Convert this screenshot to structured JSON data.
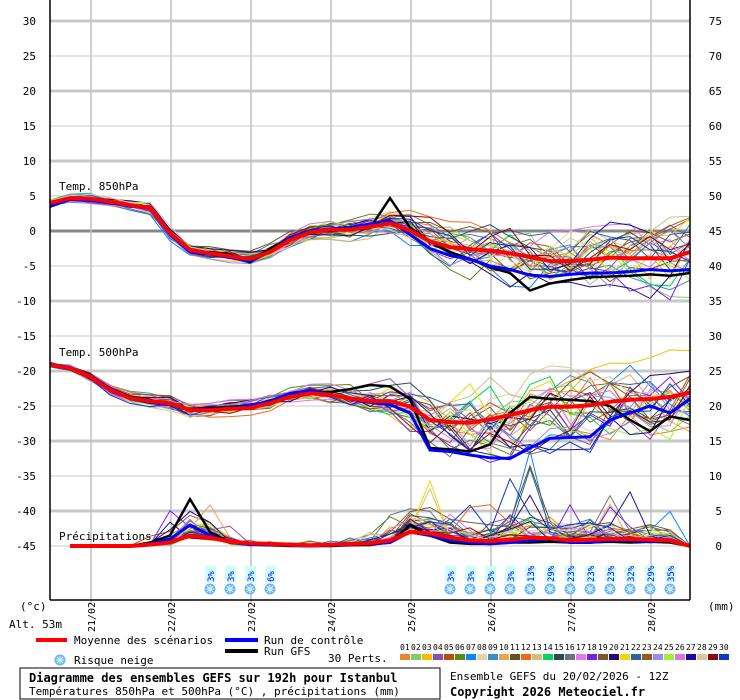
{
  "chart_data": {
    "type": "line",
    "title": "Diagramme des ensembles GEFS sur 192h pour Istanbul",
    "subtitle": "Températures 850hPa et 500hPa (°C) , précipitations (mm)",
    "run_info": "Ensemble GEFS du 20/02/2026 - 12Z",
    "copyright": "Copyright 2026 Meteociel.fr",
    "altitude": "Alt. 53m",
    "left_unit": "(°c)",
    "right_unit": "(mm)",
    "time_start": "20/02 12Z",
    "time_step_hours": 6,
    "x_ticks": [
      "21/02",
      "22/02",
      "23/02",
      "24/02",
      "25/02",
      "26/02",
      "27/02",
      "28/02"
    ],
    "y_left_ticks": [
      "30",
      "25",
      "20",
      "15",
      "10",
      "5",
      "0",
      "-5",
      "-10",
      "-15",
      "-20",
      "-25",
      "-30",
      "-35",
      "-40",
      "-45"
    ],
    "y_left_range": [
      -45,
      30
    ],
    "y_right_ticks": [
      "75",
      "70",
      "65",
      "60",
      "55",
      "50",
      "45",
      "40",
      "35",
      "30",
      "25",
      "20",
      "15",
      "10",
      "5",
      "0"
    ],
    "y_right_range": [
      0,
      75
    ],
    "panel_labels": {
      "t850": "Temp. 850hPa",
      "t500": "Temp. 500hPa",
      "precip": "Précipitations"
    },
    "series": {
      "t850": {
        "mean": [
          4,
          4.7,
          4.6,
          4.2,
          3.7,
          3.3,
          -0.3,
          -2.7,
          -3.2,
          -3.6,
          -4,
          -3,
          -1.3,
          -0.2,
          0.2,
          0.2,
          0.6,
          1.1,
          0.1,
          -1.5,
          -2.3,
          -2.6,
          -2.8,
          -3.2,
          -3.7,
          -4.3,
          -4.3,
          -4.1,
          -3.8,
          -3.9,
          -3.9,
          -3.9,
          -3
        ],
        "control": [
          3.5,
          4.5,
          4.4,
          4,
          3.6,
          3.2,
          -0.5,
          -3,
          -3.3,
          -3.8,
          -4.2,
          -3,
          -1,
          0,
          0.3,
          0.5,
          1,
          1.5,
          -0.5,
          -2.5,
          -3.5,
          -4,
          -5,
          -5.5,
          -6.3,
          -6.5,
          -6.2,
          -6,
          -6,
          -5.8,
          -5.5,
          -5.7,
          -5.5
        ],
        "gfs": [
          3.6,
          4.6,
          4.5,
          4.1,
          3.6,
          3.4,
          -0.4,
          -2.9,
          -3,
          -3.3,
          -4.4,
          -2.5,
          -1,
          0,
          0,
          0.2,
          0.4,
          4.7,
          0.5,
          -1.5,
          -3,
          -4,
          -5.2,
          -6,
          -8.5,
          -7.5,
          -7,
          -6.6,
          -6.5,
          -6.4,
          -6.2,
          -6.4,
          -6
        ],
        "spread": [
          0.5,
          0.5,
          0.5,
          0.5,
          0.5,
          0.6,
          0.7,
          0.7,
          0.7,
          0.7,
          0.7,
          0.8,
          0.9,
          1,
          1,
          1.1,
          1.2,
          1.4,
          1.8,
          2.2,
          2.6,
          3,
          3.2,
          3.4,
          3.5,
          3.6,
          3.7,
          3.8,
          3.9,
          4,
          4,
          4.1,
          4.2
        ]
      },
      "t500": {
        "mean": [
          -19.1,
          -19.6,
          -20.8,
          -22.7,
          -23.9,
          -24.3,
          -24.6,
          -25.6,
          -25.6,
          -25.4,
          -25.3,
          -24.6,
          -23.7,
          -23.2,
          -23.4,
          -23.9,
          -24.3,
          -24.3,
          -25.1,
          -27,
          -27.3,
          -27.4,
          -26.9,
          -26.3,
          -25.6,
          -25.1,
          -25.1,
          -24.9,
          -24.4,
          -24.1,
          -24,
          -23.7,
          -23.1
        ],
        "control": [
          -19,
          -19.5,
          -20.7,
          -22.5,
          -24,
          -24.5,
          -24.8,
          -25.5,
          -25.5,
          -25.3,
          -25,
          -24.3,
          -23.2,
          -22.8,
          -23.3,
          -24,
          -24.5,
          -24.8,
          -26,
          -31.3,
          -31.5,
          -32,
          -32.4,
          -32.5,
          -31,
          -29.6,
          -29.5,
          -29.4,
          -27,
          -26,
          -25,
          -26,
          -24
        ],
        "gfs": [
          -19.2,
          -19.7,
          -20.9,
          -22.6,
          -23.8,
          -24.2,
          -24.7,
          -25.4,
          -25.3,
          -25.1,
          -25,
          -24.2,
          -23.4,
          -23,
          -23,
          -22.6,
          -22,
          -22.2,
          -24,
          -31,
          -31.2,
          -31.5,
          -30.5,
          -26,
          -23.7,
          -24,
          -24.1,
          -24.3,
          -25,
          -27,
          -28.6,
          -26.5,
          -27
        ],
        "spread": [
          0.4,
          0.5,
          0.5,
          0.6,
          0.7,
          0.7,
          0.7,
          0.8,
          0.8,
          0.8,
          0.8,
          0.9,
          1,
          1,
          1.1,
          1.3,
          1.6,
          2,
          2.6,
          3.2,
          3.6,
          4,
          4.2,
          4.4,
          4.5,
          4.5,
          4.5,
          4.4,
          4.3,
          4.2,
          4.2,
          4.2,
          4.2
        ]
      },
      "precip": {
        "mean": [
          null,
          0,
          0,
          0,
          0,
          0.2,
          0.5,
          1.5,
          1.2,
          0.6,
          0.4,
          0.3,
          0.2,
          0.1,
          0.2,
          0.3,
          0.4,
          0.8,
          2,
          1.8,
          1.2,
          0.8,
          0.7,
          0.9,
          1.2,
          1.1,
          0.8,
          0.9,
          1,
          1,
          0.9,
          0.8,
          0
        ],
        "control": [
          null,
          0,
          0,
          0,
          0,
          0.3,
          1,
          3,
          1.5,
          0.5,
          0.2,
          0.2,
          0.1,
          0,
          0.1,
          0.2,
          0.3,
          0.5,
          2,
          1.5,
          0.8,
          0.5,
          0.3,
          0.5,
          0.8,
          1,
          0.5,
          0.5,
          0.8,
          0.8,
          0.6,
          0.8,
          0
        ],
        "gfs": [
          null,
          0,
          0,
          0,
          0,
          0.5,
          1.5,
          6.7,
          2,
          0.5,
          0.2,
          0.1,
          0,
          0,
          0,
          0.1,
          0.2,
          0.5,
          3,
          1.5,
          0.5,
          0.3,
          0.3,
          0.5,
          0.5,
          0.6,
          0.5,
          0.5,
          0.6,
          0.5,
          0.6,
          0.5,
          0
        ],
        "spread": [
          0,
          0,
          0,
          0,
          0,
          0.5,
          1.5,
          3,
          2,
          1,
          0.5,
          0.4,
          0.3,
          0.3,
          0.4,
          0.6,
          1,
          1.5,
          3,
          3,
          2.5,
          2,
          2,
          2.5,
          3,
          3,
          2.5,
          2.5,
          2.5,
          2,
          2,
          1.5,
          0
        ]
      }
    },
    "snow_risk": [
      {
        "step": 8,
        "label": "3%"
      },
      {
        "step": 9,
        "label": "3%"
      },
      {
        "step": 10,
        "label": "3%"
      },
      {
        "step": 11,
        "label": "6%"
      },
      {
        "step": 20,
        "label": "3%"
      },
      {
        "step": 21,
        "label": "3%"
      },
      {
        "step": 22,
        "label": "3%"
      },
      {
        "step": 23,
        "label": "3%"
      },
      {
        "step": 24,
        "label": "13%"
      },
      {
        "step": 25,
        "label": "29%"
      },
      {
        "step": 26,
        "label": "23%"
      },
      {
        "step": 27,
        "label": "23%"
      },
      {
        "step": 28,
        "label": "23%"
      },
      {
        "step": 29,
        "label": "32%"
      },
      {
        "step": 30,
        "label": "29%"
      },
      {
        "step": 31,
        "label": "35%"
      }
    ],
    "legend": {
      "mean": "Moyenne des scénarios",
      "control": "Run de contrôle",
      "gfs": "Run GFS",
      "snow": "Risque neige",
      "perts": "30 Perts."
    },
    "colors": {
      "mean": "#ff0000",
      "control": "#0000ff",
      "gfs": "#000000",
      "snow": "#4aa8e8"
    },
    "perturbations": [
      {
        "id": "01",
        "color": "#e8832e"
      },
      {
        "id": "02",
        "color": "#8cc86e"
      },
      {
        "id": "03",
        "color": "#f0c000"
      },
      {
        "id": "04",
        "color": "#8a4fb0"
      },
      {
        "id": "05",
        "color": "#b0520e"
      },
      {
        "id": "06",
        "color": "#5a8a10"
      },
      {
        "id": "07",
        "color": "#0a84ff"
      },
      {
        "id": "08",
        "color": "#e6d2aa"
      },
      {
        "id": "09",
        "color": "#3c8cc0"
      },
      {
        "id": "10",
        "color": "#e8a850"
      },
      {
        "id": "11",
        "color": "#6a5020"
      },
      {
        "id": "12",
        "color": "#f06a1a"
      },
      {
        "id": "13",
        "color": "#d2be7a"
      },
      {
        "id": "14",
        "color": "#00d65a"
      },
      {
        "id": "15",
        "color": "#2a4a5a"
      },
      {
        "id": "16",
        "color": "#6a7478"
      },
      {
        "id": "17",
        "color": "#e078f0"
      },
      {
        "id": "18",
        "color": "#7a1ef0"
      },
      {
        "id": "19",
        "color": "#7a5a2a"
      },
      {
        "id": "20",
        "color": "#2a0a6a"
      },
      {
        "id": "21",
        "color": "#f0d800"
      },
      {
        "id": "22",
        "color": "#2a64a0"
      },
      {
        "id": "23",
        "color": "#965a1e"
      },
      {
        "id": "24",
        "color": "#9a8af0"
      },
      {
        "id": "25",
        "color": "#a0f030"
      },
      {
        "id": "26",
        "color": "#d878d8"
      },
      {
        "id": "27",
        "color": "#1a0aa0"
      },
      {
        "id": "28",
        "color": "#dcc8a0"
      },
      {
        "id": "29",
        "color": "#8a0a0a"
      },
      {
        "id": "30",
        "color": "#0a3ac0"
      }
    ]
  }
}
